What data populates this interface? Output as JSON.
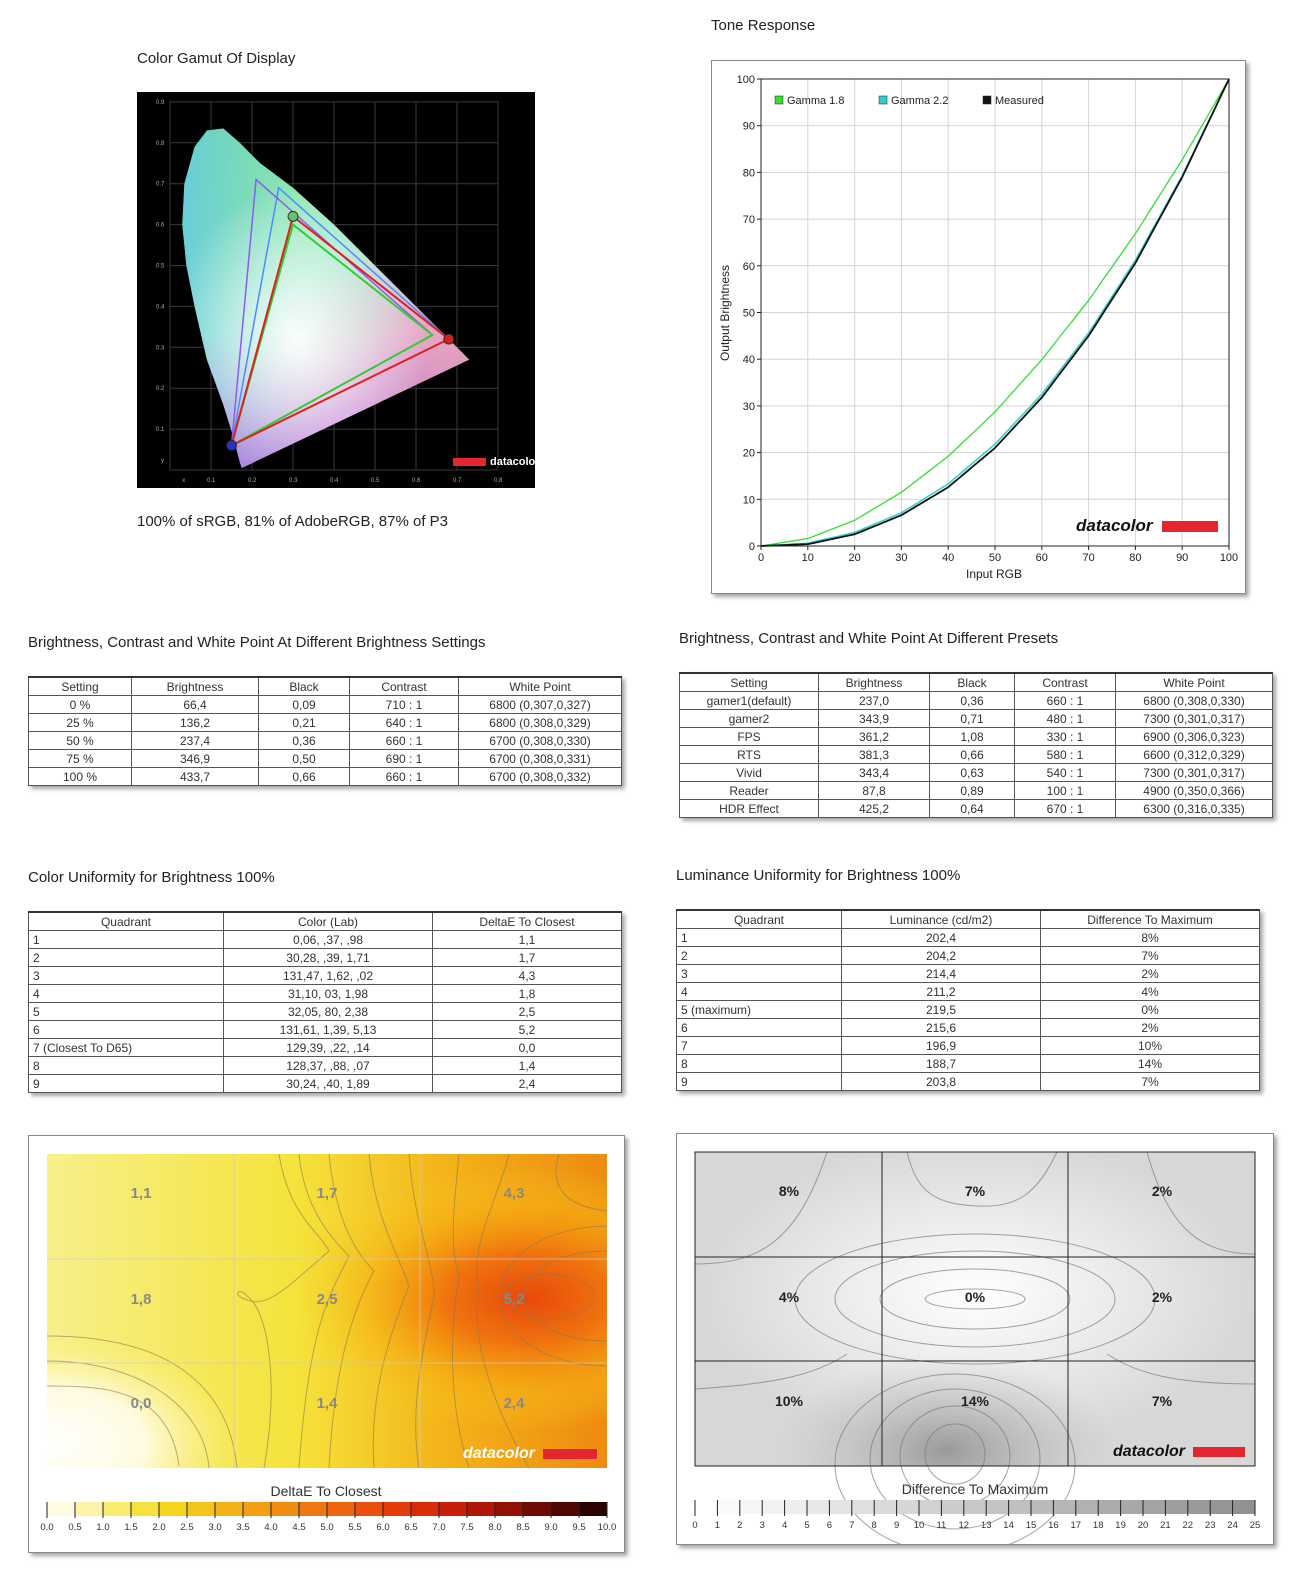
{
  "gamut": {
    "title": "Color Gamut Of Display",
    "caption": "100% of sRGB, 81% of AdobeRGB, 87% of P3",
    "logo": "datacolor",
    "x_label": "x",
    "y_label": "y",
    "x_ticks": [
      "0.1",
      "0.2",
      "0.3",
      "0.4",
      "0.5",
      "0.6",
      "0.7",
      "0.8"
    ],
    "y_ticks": [
      "0.1",
      "0.2",
      "0.3",
      "0.4",
      "0.5",
      "0.6",
      "0.7",
      "0.8",
      "0.9"
    ]
  },
  "tone": {
    "title": "Tone Response",
    "logo": "datacolor",
    "xlabel": "Input RGB",
    "ylabel": "Output Brightness",
    "legend": [
      "Gamma 1.8",
      "Gamma 2.2",
      "Measured"
    ],
    "colors": {
      "gamma18": "#33dd33",
      "gamma22": "#33cccc",
      "measured": "#111111"
    },
    "ticks": [
      "0",
      "10",
      "20",
      "30",
      "40",
      "50",
      "60",
      "70",
      "80",
      "90",
      "100"
    ]
  },
  "brightness_settings": {
    "title": "Brightness, Contrast and White Point At Different Brightness Settings",
    "headers": [
      "Setting",
      "Brightness",
      "Black",
      "Contrast",
      "White Point"
    ],
    "rows": [
      [
        "0 %",
        "66,4",
        "0,09",
        "710 : 1",
        "6800 (0,307,0,327)"
      ],
      [
        "25 %",
        "136,2",
        "0,21",
        "640 : 1",
        "6800 (0,308,0,329)"
      ],
      [
        "50 %",
        "237,4",
        "0,36",
        "660 : 1",
        "6700 (0,308,0,330)"
      ],
      [
        "75 %",
        "346,9",
        "0,50",
        "690 : 1",
        "6700 (0,308,0,331)"
      ],
      [
        "100 %",
        "433,7",
        "0,66",
        "660 : 1",
        "6700 (0,308,0,332)"
      ]
    ]
  },
  "presets": {
    "title": "Brightness, Contrast and White Point At Different Presets",
    "headers": [
      "Setting",
      "Brightness",
      "Black",
      "Contrast",
      "White Point"
    ],
    "rows": [
      [
        "gamer1(default)",
        "237,0",
        "0,36",
        "660 : 1",
        "6800 (0,308,0,330)"
      ],
      [
        "gamer2",
        "343,9",
        "0,71",
        "480 : 1",
        "7300 (0,301,0,317)"
      ],
      [
        "FPS",
        "361,2",
        "1,08",
        "330 : 1",
        "6900 (0,306,0,323)"
      ],
      [
        "RTS",
        "381,3",
        "0,66",
        "580 : 1",
        "6600 (0,312,0,329)"
      ],
      [
        "Vivid",
        "343,4",
        "0,63",
        "540 : 1",
        "7300 (0,301,0,317)"
      ],
      [
        "Reader",
        "87,8",
        "0,89",
        "100 : 1",
        "4900 (0,350,0,366)"
      ],
      [
        "HDR Effect",
        "425,2",
        "0,64",
        "670 : 1",
        "6300 (0,316,0,335)"
      ]
    ]
  },
  "color_uniformity": {
    "title": "Color Uniformity for Brightness 100%",
    "headers": [
      "Quadrant",
      "Color (Lab)",
      "DeltaE To Closest"
    ],
    "rows": [
      [
        "1",
        "0,06,    ,37,    ,98",
        "1,1"
      ],
      [
        "2",
        "30,28,    ,39,   1,71",
        "1,7"
      ],
      [
        "3",
        "131,47,   1,62,    ,02",
        "4,3"
      ],
      [
        "4",
        "31,10,    03,   1,98",
        "1,8"
      ],
      [
        "5",
        "32,05,    80,   2,38",
        "2,5"
      ],
      [
        "6",
        "131,61,   1,39,   5,13",
        "5,2"
      ],
      [
        "7 (Closest To D65)",
        "129,39,    ,22,    ,14",
        "0,0"
      ],
      [
        "8",
        "128,37,    ,88,    ,07",
        "1,4"
      ],
      [
        "9",
        "30,24,    ,40,   1,89",
        "2,4"
      ]
    ]
  },
  "luminance_uniformity": {
    "title": "Luminance Uniformity for Brightness 100%",
    "headers": [
      "Quadrant",
      "Luminance (cd/m2)",
      "Difference To Maximum"
    ],
    "rows": [
      [
        "1",
        "202,4",
        "8%"
      ],
      [
        "2",
        "204,2",
        "7%"
      ],
      [
        "3",
        "214,4",
        "2%"
      ],
      [
        "4",
        "211,2",
        "4%"
      ],
      [
        "5 (maximum)",
        "219,5",
        "0%"
      ],
      [
        "6",
        "215,6",
        "2%"
      ],
      [
        "7",
        "196,9",
        "10%"
      ],
      [
        "8",
        "188,7",
        "14%"
      ],
      [
        "9",
        "203,8",
        "7%"
      ]
    ]
  },
  "deltae_map": {
    "labels": [
      "1,1",
      "1,7",
      "4,3",
      "1,8",
      "2,5",
      "5,2",
      "0,0",
      "1,4",
      "2,4"
    ],
    "scale_title": "DeltaE To Closest",
    "scale_ticks": [
      "0.0",
      "0.5",
      "1.0",
      "1.5",
      "2.0",
      "2.5",
      "3.0",
      "3.5",
      "4.0",
      "4.5",
      "5.0",
      "5.5",
      "6.0",
      "6.5",
      "7.0",
      "7.5",
      "8.0",
      "8.5",
      "9.0",
      "9.5",
      "10.0"
    ],
    "logo": "datacolor"
  },
  "luminance_map": {
    "labels": [
      "8%",
      "7%",
      "2%",
      "4%",
      "0%",
      "2%",
      "10%",
      "14%",
      "7%"
    ],
    "scale_title": "Difference To Maximum",
    "scale_ticks": [
      "0",
      "1",
      "2",
      "3",
      "4",
      "5",
      "6",
      "7",
      "8",
      "9",
      "10",
      "11",
      "12",
      "13",
      "14",
      "15",
      "16",
      "17",
      "18",
      "19",
      "20",
      "21",
      "22",
      "23",
      "24",
      "25"
    ],
    "logo": "datacolor"
  },
  "chart_data": [
    {
      "type": "scatter",
      "title": "Color Gamut Of Display",
      "xlabel": "x",
      "ylabel": "y",
      "xlim": [
        0,
        0.8
      ],
      "ylim": [
        0,
        0.9
      ],
      "series": [
        {
          "values": [
            [
              0.68,
              0.32
            ],
            [
              0.3,
              0.62
            ],
            [
              0.15,
              0.06
            ]
          ]
        }
      ]
    },
    {
      "type": "line",
      "title": "Tone Response",
      "xlabel": "Input RGB",
      "ylabel": "Output Brightness",
      "xlim": [
        0,
        100
      ],
      "ylim": [
        0,
        100
      ],
      "x": [
        0,
        10,
        20,
        30,
        40,
        50,
        60,
        70,
        80,
        90,
        100
      ],
      "series": [
        {
          "name": "Gamma 1.8",
          "values": [
            0,
            1.6,
            5.5,
            11.5,
            19.2,
            28.7,
            39.9,
            52.6,
            66.9,
            82.7,
            100
          ]
        },
        {
          "name": "Gamma 2.2",
          "values": [
            0,
            0.6,
            2.9,
            7.1,
            13.3,
            21.8,
            32.5,
            45.6,
            61.2,
            79.3,
            100
          ]
        },
        {
          "name": "Measured",
          "values": [
            0,
            0.4,
            2.5,
            6.6,
            12.6,
            21.0,
            31.8,
            45.0,
            60.6,
            79.0,
            100
          ]
        }
      ]
    },
    {
      "type": "heatmap",
      "title": "DeltaE To Closest",
      "values": [
        [
          1.1,
          1.7,
          4.3
        ],
        [
          1.8,
          2.5,
          5.2
        ],
        [
          0.0,
          1.4,
          2.4
        ]
      ]
    },
    {
      "type": "heatmap",
      "title": "Difference To Maximum",
      "values": [
        [
          8,
          7,
          2
        ],
        [
          4,
          0,
          2
        ],
        [
          10,
          14,
          7
        ]
      ]
    }
  ]
}
